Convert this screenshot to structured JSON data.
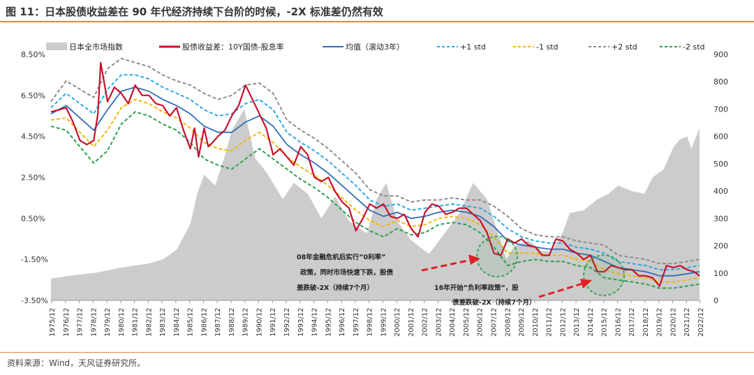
{
  "title": "图 11：日本股债收益差在 90 年代经济持续下台阶的时候，-2X 标准差仍然有效",
  "source": "资料来源：Wind，天风证券研究所。",
  "chart_data": {
    "type": "line",
    "left_axis": {
      "ticks": [
        "8.50%",
        "6.50%",
        "4.50%",
        "2.50%",
        "0.50%",
        "-1.50%",
        "-3.50%"
      ],
      "range": [
        -3.5,
        8.5
      ]
    },
    "right_axis": {
      "ticks": [
        "900",
        "800",
        "700",
        "600",
        "500",
        "400",
        "300",
        "200",
        "100",
        "0"
      ],
      "range": [
        0,
        900
      ]
    },
    "x_ticks": [
      "1975/12",
      "1976/12",
      "1977/12",
      "1978/12",
      "1979/12",
      "1980/12",
      "1981/12",
      "1982/12",
      "1983/12",
      "1984/12",
      "1985/12",
      "1986/12",
      "1987/12",
      "1988/12",
      "1989/12",
      "1990/12",
      "1991/12",
      "1992/12",
      "1993/12",
      "1994/12",
      "1995/12",
      "1996/12",
      "1997/12",
      "1998/12",
      "1999/12",
      "2000/12",
      "2001/12",
      "2002/12",
      "2003/12",
      "2004/12",
      "2005/12",
      "2006/12",
      "2007/12",
      "2008/12",
      "2009/12",
      "2010/12",
      "2011/12",
      "2012/12",
      "2013/12",
      "2014/12",
      "2015/12",
      "2016/12",
      "2017/12",
      "2018/12",
      "2019/12",
      "2020/12",
      "2021/12",
      "2022/12"
    ],
    "series": [
      {
        "name": "日本全市场指数",
        "axis": "right",
        "color": "#cccccc",
        "x": [
          1975.9,
          1977,
          1978,
          1979,
          1980,
          1981,
          1982,
          1983,
          1984,
          1985,
          1986,
          1986.5,
          1987,
          1987.8,
          1988.5,
          1989,
          1989.9,
          1990.7,
          1991.5,
          1992.7,
          1993.5,
          1994.5,
          1995.5,
          1996.5,
          1997.5,
          1998.8,
          1999.5,
          2000.2,
          2001,
          2002,
          2003.3,
          2004.5,
          2005.5,
          2006.5,
          2007.5,
          2008.2,
          2008.9,
          2009.5,
          2010.5,
          2011.5,
          2012.2,
          2013,
          2013.5,
          2014.5,
          2015.5,
          2016.3,
          2017,
          2018,
          2018.9,
          2019.5,
          2020.3,
          2021,
          2021.5,
          2022,
          2022.3,
          2022.9
        ],
        "values": [
          80,
          88,
          95,
          100,
          110,
          120,
          128,
          135,
          150,
          185,
          280,
          390,
          460,
          420,
          530,
          620,
          700,
          520,
          470,
          370,
          430,
          390,
          300,
          380,
          290,
          245,
          370,
          430,
          290,
          220,
          170,
          250,
          320,
          430,
          370,
          260,
          150,
          200,
          220,
          180,
          180,
          250,
          320,
          330,
          370,
          390,
          420,
          400,
          390,
          450,
          480,
          560,
          590,
          600,
          555,
          630
        ]
      },
      {
        "name": "股债收益差：10Y国债-股息率",
        "axis": "left",
        "color": "#c8102e",
        "x": [
          1975.9,
          1976.5,
          1977,
          1977.5,
          1978,
          1978.5,
          1979,
          1979.3,
          1979.5,
          1980,
          1980.5,
          1981,
          1981.5,
          1982,
          1982.5,
          1983,
          1983.5,
          1984,
          1984.5,
          1985,
          1985.5,
          1986,
          1986.3,
          1986.6,
          1987,
          1987.3,
          1987.6,
          1988,
          1988.5,
          1989,
          1989.5,
          1990,
          1990.5,
          1991,
          1991.5,
          1992,
          1992.5,
          1993,
          1993.5,
          1994,
          1994.5,
          1995,
          1995.5,
          1996,
          1996.5,
          1997,
          1997.5,
          1998,
          1998.5,
          1999,
          1999.5,
          2000,
          2000.5,
          2001,
          2001.5,
          2002,
          2002.5,
          2003,
          2003.5,
          2004,
          2004.5,
          2005,
          2005.5,
          2006,
          2006.5,
          2007,
          2007.5,
          2008,
          2008.5,
          2009,
          2009.5,
          2010,
          2010.5,
          2011,
          2011.5,
          2012,
          2012.5,
          2013,
          2013.5,
          2014,
          2014.5,
          2015,
          2015.5,
          2016,
          2016.5,
          2017,
          2017.5,
          2018,
          2018.5,
          2019,
          2019.5,
          2020,
          2020.5,
          2021,
          2021.5,
          2022,
          2022.5,
          2022.9
        ],
        "values": [
          5.7,
          5.8,
          5.9,
          5.2,
          4.3,
          4.1,
          4.3,
          5.6,
          8.1,
          6.2,
          6.9,
          6.6,
          6.1,
          7.0,
          6.5,
          6.5,
          6.1,
          6.0,
          5.5,
          5.9,
          4.8,
          3.9,
          4.9,
          3.5,
          4.9,
          4.0,
          4.2,
          4.5,
          4.8,
          5.5,
          6.0,
          7.0,
          6.3,
          5.6,
          4.9,
          3.6,
          3.9,
          3.5,
          3.1,
          4.0,
          3.6,
          2.5,
          2.3,
          2.5,
          1.8,
          1.3,
          1.0,
          -0.1,
          0.5,
          1.2,
          1.0,
          1.2,
          0.6,
          0.5,
          0.7,
          0.0,
          -0.4,
          0.8,
          1.2,
          1.1,
          0.7,
          0.8,
          1.0,
          1.0,
          0.7,
          0.4,
          -0.2,
          -1.2,
          -1.3,
          -0.5,
          -0.7,
          -0.5,
          -0.8,
          -0.9,
          -1.3,
          -1.3,
          -0.5,
          -0.6,
          -1.0,
          -1.2,
          -1.5,
          -1.3,
          -2.1,
          -2.1,
          -1.8,
          -1.9,
          -2.0,
          -2.0,
          -2.3,
          -2.3,
          -2.4,
          -2.8,
          -1.8,
          -1.9,
          -1.8,
          -2.0,
          -2.1,
          -2.3
        ]
      },
      {
        "name": "均值（滚动3年）",
        "axis": "left",
        "color": "#2f6eb5",
        "x": [
          1975.9,
          1977,
          1978,
          1979,
          1980,
          1981,
          1982,
          1983,
          1984,
          1985,
          1986,
          1987,
          1988,
          1989,
          1990,
          1991,
          1992,
          1993,
          1994,
          1995,
          1996,
          1997,
          1998,
          1999,
          2000,
          2001,
          2002,
          2003,
          2004,
          2005,
          2006,
          2007,
          2008,
          2009,
          2010,
          2011,
          2012,
          2013,
          2014,
          2015,
          2016,
          2017,
          2018,
          2019,
          2020,
          2021,
          2022,
          2022.9
        ],
        "values": [
          5.6,
          6.0,
          5.4,
          4.8,
          5.8,
          6.7,
          6.9,
          6.7,
          6.3,
          6.0,
          5.6,
          5.0,
          4.7,
          4.7,
          5.2,
          5.5,
          5.0,
          4.1,
          3.6,
          3.2,
          2.7,
          2.1,
          1.5,
          0.9,
          0.6,
          0.8,
          0.5,
          0.6,
          0.8,
          0.9,
          0.8,
          0.6,
          0.1,
          -0.6,
          -0.8,
          -0.9,
          -1.0,
          -1.0,
          -1.2,
          -1.3,
          -1.6,
          -1.9,
          -2.0,
          -2.1,
          -2.3,
          -2.3,
          -2.2,
          -2.1
        ]
      },
      {
        "name": "+1 std",
        "axis": "left",
        "color": "#29a9e1",
        "dash": "dashed"
      },
      {
        "name": "-1 std",
        "axis": "left",
        "color": "#f2b705",
        "dash": "dashed"
      },
      {
        "name": "+2 std",
        "axis": "left",
        "color": "#8c8c8c",
        "dash": "dashed"
      },
      {
        "name": "-2 std",
        "axis": "left",
        "color": "#2e9e4f",
        "dash": "dashed"
      }
    ],
    "std_band": {
      "x": [
        1975.9,
        1977,
        1978,
        1979,
        1980,
        1981,
        1982,
        1983,
        1984,
        1985,
        1986,
        1987,
        1988,
        1989,
        1990,
        1991,
        1992,
        1993,
        1994,
        1995,
        1996,
        1997,
        1998,
        1999,
        2000,
        2001,
        2002,
        2003,
        2004,
        2005,
        2006,
        2007,
        2008,
        2009,
        2010,
        2011,
        2012,
        2013,
        2014,
        2015,
        2016,
        2017,
        2018,
        2019,
        2020,
        2021,
        2022,
        2022.9
      ],
      "std": [
        0.3,
        0.6,
        0.7,
        0.8,
        1.0,
        0.8,
        0.6,
        0.6,
        0.6,
        0.6,
        0.7,
        0.8,
        0.8,
        0.9,
        0.9,
        0.8,
        0.8,
        0.6,
        0.6,
        0.6,
        0.6,
        0.6,
        0.6,
        0.5,
        0.5,
        0.4,
        0.4,
        0.4,
        0.3,
        0.3,
        0.3,
        0.4,
        0.5,
        0.6,
        0.4,
        0.3,
        0.3,
        0.3,
        0.3,
        0.3,
        0.4,
        0.3,
        0.3,
        0.3,
        0.3,
        0.3,
        0.3,
        0.3
      ]
    },
    "annotations": [
      {
        "lines": [
          "08年金融危机后实行”0利率”",
          "政策，同时市场快速下跌，股债",
          "差跌破-2X（持续7个月）"
        ]
      },
      {
        "lines": [
          "16年开始”负利率政策”，股",
          "债差跌破-2X（持续7个月）"
        ]
      }
    ]
  }
}
